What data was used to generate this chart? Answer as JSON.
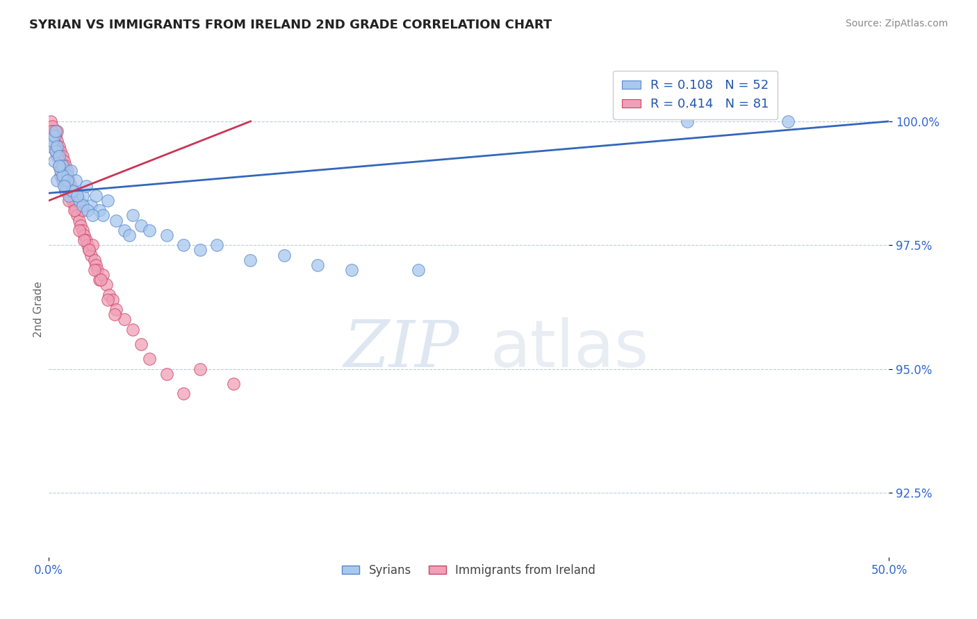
{
  "title": "SYRIAN VS IMMIGRANTS FROM IRELAND 2ND GRADE CORRELATION CHART",
  "source_text": "Source: ZipAtlas.com",
  "ylabel_label": "2nd Grade",
  "ylabel_ticks": [
    92.5,
    95.0,
    97.5,
    100.0
  ],
  "ylabel_tick_labels": [
    "92.5%",
    "95.0%",
    "97.5%",
    "100.0%"
  ],
  "xmin": 0.0,
  "xmax": 50.0,
  "ymin": 91.2,
  "ymax": 101.2,
  "blue_color": "#A8C8EE",
  "pink_color": "#F0A0B8",
  "blue_edge_color": "#5588CC",
  "pink_edge_color": "#CC4466",
  "blue_line_color": "#3366BB",
  "pink_line_color": "#CC3355",
  "legend_r1": "R = 0.108",
  "legend_n1": "N = 52",
  "legend_r2": "R = 0.414",
  "legend_n2": "N = 81",
  "watermark_zip": "ZIP",
  "watermark_atlas": "atlas",
  "blue_scatter_x": [
    0.1,
    0.2,
    0.3,
    0.3,
    0.4,
    0.4,
    0.5,
    0.5,
    0.6,
    0.7,
    0.8,
    0.9,
    1.0,
    1.1,
    1.2,
    1.3,
    1.5,
    1.6,
    1.8,
    2.0,
    2.2,
    2.5,
    2.8,
    3.0,
    3.5,
    4.0,
    4.5,
    5.0,
    5.5,
    6.0,
    7.0,
    8.0,
    9.0,
    10.0,
    12.0,
    14.0,
    16.0,
    18.0,
    22.0,
    1.4,
    2.0,
    3.2,
    4.8,
    1.7,
    2.3,
    0.8,
    1.1,
    0.6,
    2.6,
    38.0,
    0.9,
    44.0
  ],
  "blue_scatter_y": [
    99.5,
    99.6,
    99.2,
    99.7,
    99.4,
    99.8,
    98.8,
    99.5,
    99.3,
    99.0,
    99.1,
    98.9,
    98.7,
    98.9,
    98.5,
    99.0,
    98.6,
    98.8,
    98.4,
    98.5,
    98.7,
    98.3,
    98.5,
    98.2,
    98.4,
    98.0,
    97.8,
    98.1,
    97.9,
    97.8,
    97.7,
    97.5,
    97.4,
    97.5,
    97.2,
    97.3,
    97.1,
    97.0,
    97.0,
    98.6,
    98.3,
    98.1,
    97.7,
    98.5,
    98.2,
    98.9,
    98.8,
    99.1,
    98.1,
    100.0,
    98.7,
    100.0
  ],
  "pink_scatter_x": [
    0.1,
    0.1,
    0.2,
    0.2,
    0.3,
    0.3,
    0.4,
    0.4,
    0.5,
    0.5,
    0.5,
    0.6,
    0.6,
    0.7,
    0.7,
    0.8,
    0.8,
    0.9,
    0.9,
    1.0,
    1.0,
    1.0,
    1.1,
    1.1,
    1.2,
    1.2,
    1.3,
    1.3,
    1.4,
    1.4,
    1.5,
    1.5,
    1.6,
    1.6,
    1.7,
    1.8,
    1.9,
    2.0,
    2.0,
    2.1,
    2.2,
    2.3,
    2.4,
    2.5,
    2.6,
    2.7,
    2.8,
    2.9,
    3.0,
    3.2,
    3.4,
    3.6,
    3.8,
    4.0,
    4.5,
    5.0,
    5.5,
    6.0,
    7.0,
    8.0,
    0.3,
    0.5,
    0.7,
    0.4,
    0.6,
    0.8,
    1.0,
    1.2,
    1.5,
    1.8,
    2.1,
    2.4,
    2.7,
    3.1,
    3.5,
    3.9,
    0.2,
    0.15,
    0.25,
    9.0,
    11.0
  ],
  "pink_scatter_y": [
    99.8,
    100.0,
    99.7,
    99.9,
    99.6,
    99.8,
    99.5,
    99.7,
    99.4,
    99.6,
    99.8,
    99.3,
    99.5,
    99.2,
    99.4,
    99.1,
    99.3,
    99.0,
    99.2,
    98.9,
    99.1,
    98.8,
    98.7,
    99.0,
    98.6,
    98.8,
    98.5,
    98.7,
    98.4,
    98.6,
    98.3,
    98.5,
    98.2,
    98.4,
    98.1,
    98.0,
    97.9,
    98.2,
    97.8,
    97.7,
    97.6,
    97.5,
    97.4,
    97.3,
    97.5,
    97.2,
    97.1,
    97.0,
    96.8,
    96.9,
    96.7,
    96.5,
    96.4,
    96.2,
    96.0,
    95.8,
    95.5,
    95.2,
    94.9,
    94.5,
    99.5,
    99.3,
    98.9,
    99.4,
    99.1,
    98.8,
    98.6,
    98.4,
    98.2,
    97.8,
    97.6,
    97.4,
    97.0,
    96.8,
    96.4,
    96.1,
    99.7,
    99.8,
    99.6,
    95.0,
    94.7
  ],
  "blue_trendline_x": [
    0.0,
    50.0
  ],
  "blue_trendline_y": [
    98.55,
    100.0
  ],
  "pink_trendline_x": [
    0.0,
    12.0
  ],
  "pink_trendline_y": [
    98.4,
    100.0
  ]
}
